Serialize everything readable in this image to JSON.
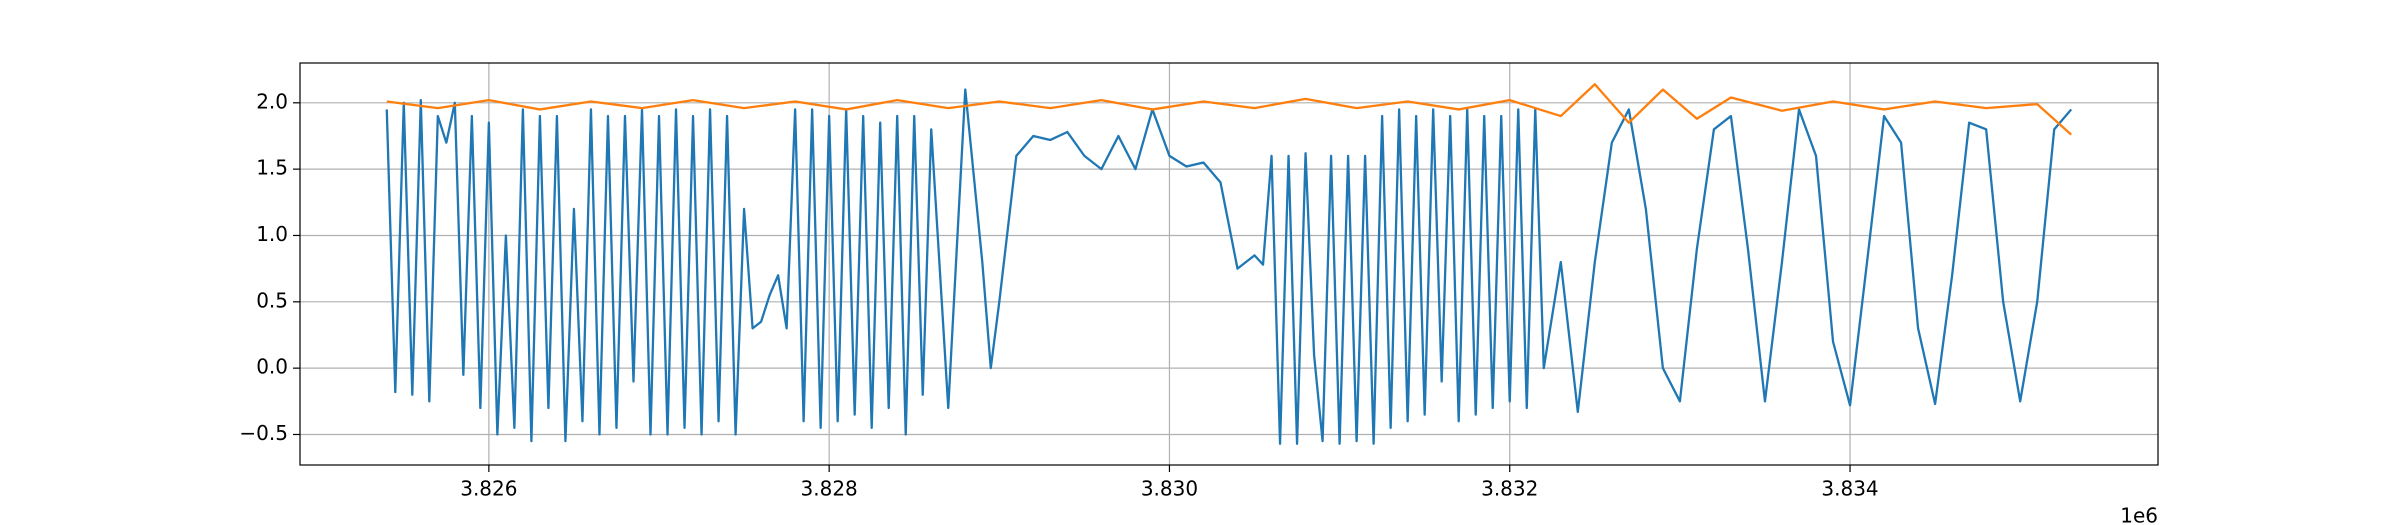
{
  "chart_data": {
    "type": "line",
    "x_offset_text": "1e6",
    "xlim": [
      3.82489,
      3.83581
    ],
    "ylim": [
      -0.73,
      2.3
    ],
    "xticks": [
      3.826,
      3.828,
      {
        "value": 3.83,
        "label": "3.830"
      },
      3.832,
      3.834
    ],
    "yticks": [
      {
        "value": -0.5,
        "label": "−0.5"
      },
      {
        "value": 0,
        "label": "0.0"
      },
      0.5,
      {
        "value": 1,
        "label": "1.0"
      },
      1.5,
      {
        "value": 2,
        "label": "2.0"
      }
    ],
    "grid": true,
    "series": [
      {
        "color": "#1f77b4",
        "x": [
          3.8254,
          3.82545,
          3.8255,
          3.82555,
          3.8256,
          3.82565,
          3.8257,
          3.82575,
          3.8258,
          3.82585,
          3.8259,
          3.82595,
          3.826,
          3.82605,
          3.8261,
          3.82615,
          3.8262,
          3.82625,
          3.8263,
          3.82635,
          3.8264,
          3.82645,
          3.8265,
          3.82655,
          3.8266,
          3.82665,
          3.8267,
          3.82675,
          3.8268,
          3.82685,
          3.8269,
          3.82695,
          3.827,
          3.82705,
          3.8271,
          3.82715,
          3.8272,
          3.82725,
          3.8273,
          3.82735,
          3.8274,
          3.82745,
          3.8275,
          3.82755,
          3.8276,
          3.82765,
          3.8277,
          3.82775,
          3.8278,
          3.82785,
          3.8279,
          3.82795,
          3.828,
          3.82805,
          3.8281,
          3.82815,
          3.8282,
          3.82825,
          3.8283,
          3.82835,
          3.8284,
          3.82845,
          3.8285,
          3.82855,
          3.8286,
          3.8287,
          3.8288,
          3.8289,
          3.82895,
          3.829,
          3.8291,
          3.8292,
          3.8293,
          3.8294,
          3.8295,
          3.8296,
          3.8297,
          3.8298,
          3.8299,
          3.83,
          3.8301,
          3.8302,
          3.8303,
          3.8304,
          3.8305,
          3.83055,
          3.8306,
          3.83065,
          3.8307,
          3.83075,
          3.8308,
          3.83085,
          3.8309,
          3.83095,
          3.831,
          3.83105,
          3.8311,
          3.83115,
          3.8312,
          3.83125,
          3.8313,
          3.83135,
          3.8314,
          3.83145,
          3.8315,
          3.83155,
          3.8316,
          3.83165,
          3.8317,
          3.83175,
          3.8318,
          3.83185,
          3.8319,
          3.83195,
          3.832,
          3.83205,
          3.8321,
          3.83215,
          3.8322,
          3.8323,
          3.8324,
          3.8325,
          3.8326,
          3.8327,
          3.8328,
          3.8329,
          3.833,
          3.8331,
          3.8332,
          3.8333,
          3.8334,
          3.8335,
          3.8336,
          3.8337,
          3.8338,
          3.8339,
          3.834,
          3.8341,
          3.8342,
          3.8343,
          3.8344,
          3.8345,
          3.8346,
          3.8347,
          3.8348,
          3.8349,
          3.835,
          3.8351,
          3.8352,
          3.8353
        ],
        "values": [
          1.95,
          -0.18,
          2.0,
          -0.2,
          2.02,
          -0.25,
          1.9,
          1.7,
          2.0,
          -0.05,
          1.9,
          -0.3,
          1.85,
          -0.5,
          1.0,
          -0.45,
          1.95,
          -0.55,
          1.9,
          -0.3,
          1.9,
          -0.55,
          1.2,
          -0.4,
          1.95,
          -0.5,
          1.9,
          -0.45,
          1.9,
          -0.1,
          1.95,
          -0.5,
          1.9,
          -0.5,
          1.95,
          -0.45,
          1.9,
          -0.5,
          1.95,
          -0.4,
          1.9,
          -0.5,
          1.2,
          0.3,
          0.35,
          0.55,
          0.7,
          0.3,
          1.95,
          -0.4,
          1.95,
          -0.45,
          1.9,
          -0.4,
          1.95,
          -0.35,
          1.9,
          -0.45,
          1.85,
          -0.3,
          1.9,
          -0.5,
          1.9,
          -0.2,
          1.8,
          -0.3,
          2.1,
          0.8,
          0.0,
          0.5,
          1.6,
          1.75,
          1.72,
          1.78,
          1.6,
          1.5,
          1.75,
          1.5,
          1.95,
          1.6,
          1.52,
          1.55,
          1.4,
          0.75,
          0.85,
          0.78,
          1.6,
          -0.57,
          1.6,
          -0.57,
          1.62,
          0.1,
          -0.55,
          1.6,
          -0.57,
          1.6,
          -0.55,
          1.6,
          -0.57,
          1.9,
          -0.45,
          1.95,
          -0.4,
          1.9,
          -0.35,
          1.95,
          -0.1,
          1.9,
          -0.4,
          1.95,
          -0.35,
          1.9,
          -0.3,
          1.9,
          -0.25,
          1.95,
          -0.3,
          1.95,
          0.0,
          0.8,
          -0.33,
          0.8,
          1.7,
          1.95,
          1.2,
          0.0,
          -0.25,
          0.9,
          1.8,
          1.9,
          0.9,
          -0.25,
          0.8,
          1.95,
          1.6,
          0.2,
          -0.28,
          0.8,
          1.9,
          1.7,
          0.3,
          -0.27,
          0.7,
          1.85,
          1.8,
          0.5,
          -0.25,
          0.5,
          1.8,
          1.95
        ]
      },
      {
        "color": "#ff7f0e",
        "x": [
          3.8254,
          3.8257,
          3.826,
          3.8263,
          3.8266,
          3.8269,
          3.8272,
          3.8275,
          3.8278,
          3.8281,
          3.8284,
          3.8287,
          3.829,
          3.8293,
          3.8296,
          3.8299,
          3.8302,
          3.8305,
          3.8308,
          3.8311,
          3.8314,
          3.8317,
          3.832,
          3.8323,
          3.8325,
          3.8327,
          3.8329,
          3.8331,
          3.8333,
          3.8336,
          3.8339,
          3.8342,
          3.8345,
          3.8348,
          3.8351,
          3.8353
        ],
        "values": [
          2.01,
          1.96,
          2.02,
          1.95,
          2.01,
          1.96,
          2.02,
          1.96,
          2.01,
          1.95,
          2.02,
          1.96,
          2.01,
          1.96,
          2.02,
          1.95,
          2.01,
          1.96,
          2.03,
          1.96,
          2.01,
          1.95,
          2.02,
          1.9,
          2.14,
          1.85,
          2.1,
          1.88,
          2.04,
          1.94,
          2.01,
          1.95,
          2.01,
          1.96,
          1.99,
          1.76
        ]
      }
    ]
  }
}
